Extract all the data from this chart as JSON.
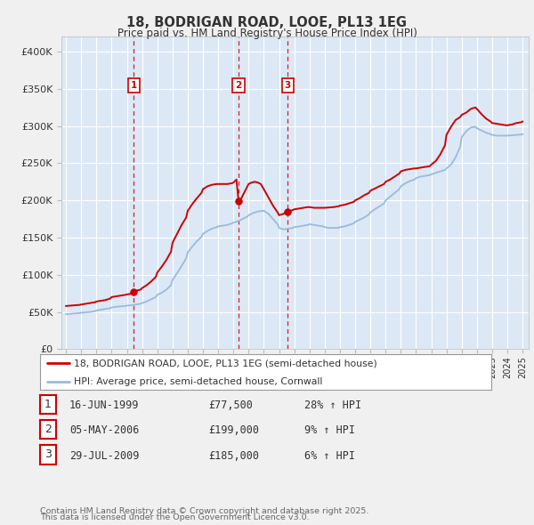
{
  "title": "18, BODRIGAN ROAD, LOOE, PL13 1EG",
  "subtitle": "Price paid vs. HM Land Registry's House Price Index (HPI)",
  "red_label": "18, BODRIGAN ROAD, LOOE, PL13 1EG (semi-detached house)",
  "blue_label": "HPI: Average price, semi-detached house, Cornwall",
  "transactions": [
    {
      "num": 1,
      "date": "16-JUN-1999",
      "price": "£77,500",
      "year": 1999.46,
      "hpi_pct": "28% ↑ HPI"
    },
    {
      "num": 2,
      "date": "05-MAY-2006",
      "price": "£199,000",
      "year": 2006.34,
      "hpi_pct": "9% ↑ HPI"
    },
    {
      "num": 3,
      "date": "29-JUL-2009",
      "price": "£185,000",
      "year": 2009.57,
      "hpi_pct": "6% ↑ HPI"
    }
  ],
  "footer1": "Contains HM Land Registry data © Crown copyright and database right 2025.",
  "footer2": "This data is licensed under the Open Government Licence v3.0.",
  "red_color": "#cc0000",
  "blue_color": "#99bbdd",
  "dashed_color": "#cc0000",
  "ylim": [
    0,
    420000
  ],
  "yticks": [
    0,
    50000,
    100000,
    150000,
    200000,
    250000,
    300000,
    350000,
    400000
  ],
  "ytick_labels": [
    "£0",
    "£50K",
    "£100K",
    "£150K",
    "£200K",
    "£250K",
    "£300K",
    "£350K",
    "£400K"
  ],
  "background_color": "#f0f0f0",
  "plot_bg_color": "#dce8f5"
}
